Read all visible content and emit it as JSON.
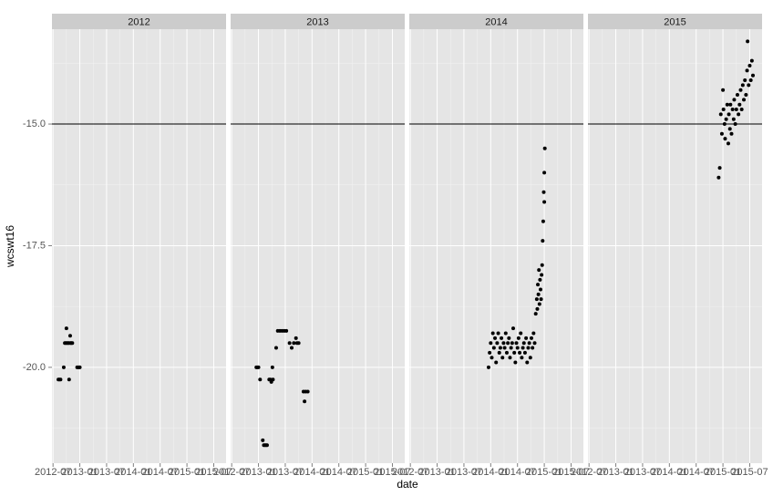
{
  "chart_data": {
    "type": "scatter",
    "x_label": "date",
    "y_label": "wcswt16",
    "xlim": [
      2012.48,
      2015.73
    ],
    "ylim": [
      -21.97,
      -13.05
    ],
    "xticks": [
      {
        "value": 2012.5,
        "label": "2012-07"
      },
      {
        "value": 2013.0,
        "label": "2013-01"
      },
      {
        "value": 2013.5,
        "label": "2013-07"
      },
      {
        "value": 2014.0,
        "label": "2014-01"
      },
      {
        "value": 2014.5,
        "label": "2014-07"
      },
      {
        "value": 2015.0,
        "label": "2015-01"
      },
      {
        "value": 2015.5,
        "label": "2015-07"
      }
    ],
    "yticks": [
      {
        "value": -20,
        "label": "-20.0"
      },
      {
        "value": -17.5,
        "label": "-17.5"
      },
      {
        "value": -15,
        "label": "-15.0"
      }
    ],
    "hline": -15,
    "point_color": "#000000",
    "grid": true,
    "facets": [
      {
        "name": "2012",
        "x": [
          2012.6,
          2012.62,
          2012.64,
          2012.7,
          2012.72,
          2012.74,
          2012.75,
          2012.76,
          2012.78,
          2012.8,
          2012.8,
          2012.82,
          2012.83,
          2012.84,
          2012.86,
          2012.95,
          2012.97,
          2012.99,
          2013.0
        ],
        "values": [
          -20.25,
          -20.25,
          -20.25,
          -20.0,
          -19.5,
          -19.5,
          -19.2,
          -19.5,
          -19.5,
          -20.25,
          -19.5,
          -19.35,
          -19.5,
          -19.5,
          -19.5,
          -20.0,
          -20.0,
          -20.0,
          -20.0
        ]
      },
      {
        "name": "2013",
        "x": [
          2012.96,
          2012.98,
          2013.0,
          2013.03,
          2013.08,
          2013.1,
          2013.12,
          2013.14,
          2013.16,
          2013.2,
          2013.22,
          2013.24,
          2013.26,
          2013.27,
          2013.33,
          2013.36,
          2013.4,
          2013.44,
          2013.48,
          2013.52,
          2013.58,
          2013.62,
          2013.66,
          2013.7,
          2013.72,
          2013.75,
          2013.84,
          2013.86,
          2013.88,
          2013.92
        ],
        "values": [
          -20.0,
          -20.0,
          -20.0,
          -20.25,
          -21.5,
          -21.6,
          -21.6,
          -21.6,
          -21.6,
          -20.25,
          -20.25,
          -20.3,
          -20.0,
          -20.25,
          -19.6,
          -19.25,
          -19.25,
          -19.25,
          -19.25,
          -19.25,
          -19.5,
          -19.6,
          -19.5,
          -19.4,
          -19.5,
          -19.5,
          -20.5,
          -20.7,
          -20.5,
          -20.5
        ]
      },
      {
        "name": "2014",
        "x": [
          2013.96,
          2013.98,
          2014.0,
          2014.02,
          2014.04,
          2014.06,
          2014.08,
          2014.1,
          2014.12,
          2014.14,
          2014.16,
          2014.18,
          2014.2,
          2014.22,
          2014.24,
          2014.26,
          2014.28,
          2014.3,
          2014.32,
          2014.34,
          2014.36,
          2014.38,
          2014.4,
          2014.42,
          2014.44,
          2014.46,
          2014.48,
          2014.5,
          2014.52,
          2014.54,
          2014.56,
          2014.58,
          2014.6,
          2014.62,
          2014.64,
          2014.66,
          2014.68,
          2014.7,
          2014.72,
          2014.74,
          2014.76,
          2014.78,
          2014.8,
          2014.82,
          2014.84,
          2014.86,
          2014.87,
          2014.88,
          2014.89,
          2014.9,
          2014.91,
          2014.92,
          2014.93,
          2014.94,
          2014.95,
          2014.96,
          2014.97,
          2014.98,
          2014.99,
          2015.0,
          2015.0,
          2015.01
        ],
        "values": [
          -20.0,
          -19.7,
          -19.5,
          -19.8,
          -19.3,
          -19.6,
          -19.4,
          -19.9,
          -19.5,
          -19.3,
          -19.7,
          -19.6,
          -19.4,
          -19.8,
          -19.5,
          -19.6,
          -19.3,
          -19.7,
          -19.5,
          -19.4,
          -19.8,
          -19.6,
          -19.5,
          -19.2,
          -19.7,
          -19.9,
          -19.5,
          -19.6,
          -19.4,
          -19.7,
          -19.3,
          -19.8,
          -19.6,
          -19.5,
          -19.7,
          -19.4,
          -19.9,
          -19.6,
          -19.5,
          -19.8,
          -19.4,
          -19.6,
          -19.3,
          -19.5,
          -18.9,
          -18.6,
          -18.8,
          -18.3,
          -18.5,
          -18.0,
          -18.7,
          -18.2,
          -18.4,
          -18.6,
          -18.1,
          -17.9,
          -17.4,
          -17.0,
          -16.4,
          -16.0,
          -16.6,
          -15.5
        ]
      },
      {
        "name": "2015",
        "x": [
          2014.92,
          2014.94,
          2014.96,
          2014.98,
          2015.0,
          2015.01,
          2015.03,
          2015.04,
          2015.06,
          2015.08,
          2015.1,
          2015.11,
          2015.13,
          2015.14,
          2015.16,
          2015.18,
          2015.2,
          2015.21,
          2015.23,
          2015.25,
          2015.27,
          2015.29,
          2015.31,
          2015.33,
          2015.35,
          2015.37,
          2015.39,
          2015.41,
          2015.43,
          2015.45,
          2015.46,
          2015.48,
          2015.5,
          2015.52,
          2015.54,
          2015.56
        ],
        "values": [
          -16.1,
          -15.9,
          -14.8,
          -15.2,
          -14.3,
          -14.7,
          -15.0,
          -15.3,
          -14.9,
          -14.6,
          -15.4,
          -14.8,
          -15.1,
          -14.6,
          -15.2,
          -14.7,
          -14.9,
          -14.5,
          -15.0,
          -14.7,
          -14.4,
          -14.8,
          -14.6,
          -14.3,
          -14.7,
          -14.2,
          -14.5,
          -14.1,
          -14.4,
          -13.9,
          -13.3,
          -14.2,
          -13.8,
          -14.1,
          -13.7,
          -14.0
        ]
      }
    ]
  }
}
